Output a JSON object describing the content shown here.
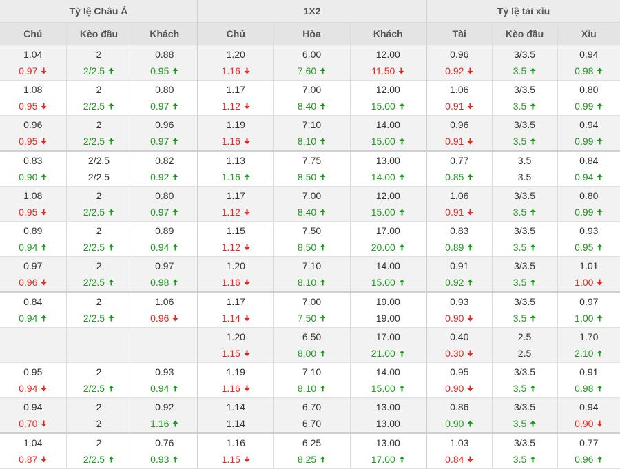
{
  "groups": [
    {
      "label": "Tỷ lệ Châu Á"
    },
    {
      "label": "1X2"
    },
    {
      "label": "Tỷ lệ tài xỉu"
    }
  ],
  "columns": [
    {
      "label": "Chủ"
    },
    {
      "label": "Kèo đầu"
    },
    {
      "label": "Khách"
    },
    {
      "label": "Chủ"
    },
    {
      "label": "Hòa"
    },
    {
      "label": "Khách"
    },
    {
      "label": "Tài"
    },
    {
      "label": "Kèo đầu"
    },
    {
      "label": "Xỉu"
    }
  ],
  "colors": {
    "up": "#1e9b1e",
    "down": "#e8281f",
    "text": "#333333",
    "alt_row_bg": "#f2f2f2",
    "header_bg": "#e4e4e4"
  },
  "icons": {
    "up": "arrow-up-icon",
    "down": "arrow-down-icon"
  },
  "rows": [
    {
      "cells": [
        {
          "opening": "1.04",
          "current": "0.97",
          "trend": "down"
        },
        {
          "opening": "2",
          "current": "2/2.5",
          "trend": "up"
        },
        {
          "opening": "0.88",
          "current": "0.95",
          "trend": "up"
        },
        {
          "opening": "1.20",
          "current": "1.16",
          "trend": "down"
        },
        {
          "opening": "6.00",
          "current": "7.60",
          "trend": "up"
        },
        {
          "opening": "12.00",
          "current": "11.50",
          "trend": "down"
        },
        {
          "opening": "0.96",
          "current": "0.92",
          "trend": "down"
        },
        {
          "opening": "3/3.5",
          "current": "3.5",
          "trend": "up"
        },
        {
          "opening": "0.94",
          "current": "0.98",
          "trend": "up"
        }
      ]
    },
    {
      "cells": [
        {
          "opening": "1.08",
          "current": "0.95",
          "trend": "down"
        },
        {
          "opening": "2",
          "current": "2/2.5",
          "trend": "up"
        },
        {
          "opening": "0.80",
          "current": "0.97",
          "trend": "up"
        },
        {
          "opening": "1.17",
          "current": "1.12",
          "trend": "down"
        },
        {
          "opening": "7.00",
          "current": "8.40",
          "trend": "up"
        },
        {
          "opening": "12.00",
          "current": "15.00",
          "trend": "up"
        },
        {
          "opening": "1.06",
          "current": "0.91",
          "trend": "down"
        },
        {
          "opening": "3/3.5",
          "current": "3.5",
          "trend": "up"
        },
        {
          "opening": "0.80",
          "current": "0.99",
          "trend": "up"
        }
      ]
    },
    {
      "cells": [
        {
          "opening": "0.96",
          "current": "0.95",
          "trend": "down"
        },
        {
          "opening": "2",
          "current": "2/2.5",
          "trend": "up"
        },
        {
          "opening": "0.96",
          "current": "0.97",
          "trend": "up"
        },
        {
          "opening": "1.19",
          "current": "1.16",
          "trend": "down"
        },
        {
          "opening": "7.10",
          "current": "8.10",
          "trend": "up"
        },
        {
          "opening": "14.00",
          "current": "15.00",
          "trend": "up"
        },
        {
          "opening": "0.96",
          "current": "0.91",
          "trend": "down"
        },
        {
          "opening": "3/3.5",
          "current": "3.5",
          "trend": "up"
        },
        {
          "opening": "0.94",
          "current": "0.99",
          "trend": "up"
        }
      ]
    },
    {
      "cells": [
        {
          "opening": "0.83",
          "current": "0.90",
          "trend": "up"
        },
        {
          "opening": "2/2.5",
          "current": "2/2.5",
          "trend": "none"
        },
        {
          "opening": "0.82",
          "current": "0.92",
          "trend": "up"
        },
        {
          "opening": "1.13",
          "current": "1.16",
          "trend": "up"
        },
        {
          "opening": "7.75",
          "current": "8.50",
          "trend": "up"
        },
        {
          "opening": "13.00",
          "current": "14.00",
          "trend": "up"
        },
        {
          "opening": "0.77",
          "current": "0.85",
          "trend": "up"
        },
        {
          "opening": "3.5",
          "current": "3.5",
          "trend": "none"
        },
        {
          "opening": "0.84",
          "current": "0.94",
          "trend": "up"
        }
      ]
    },
    {
      "cells": [
        {
          "opening": "1.08",
          "current": "0.95",
          "trend": "down"
        },
        {
          "opening": "2",
          "current": "2/2.5",
          "trend": "up"
        },
        {
          "opening": "0.80",
          "current": "0.97",
          "trend": "up"
        },
        {
          "opening": "1.17",
          "current": "1.12",
          "trend": "down"
        },
        {
          "opening": "7.00",
          "current": "8.40",
          "trend": "up"
        },
        {
          "opening": "12.00",
          "current": "15.00",
          "trend": "up"
        },
        {
          "opening": "1.06",
          "current": "0.91",
          "trend": "down"
        },
        {
          "opening": "3/3.5",
          "current": "3.5",
          "trend": "up"
        },
        {
          "opening": "0.80",
          "current": "0.99",
          "trend": "up"
        }
      ]
    },
    {
      "cells": [
        {
          "opening": "0.89",
          "current": "0.94",
          "trend": "up"
        },
        {
          "opening": "2",
          "current": "2/2.5",
          "trend": "up"
        },
        {
          "opening": "0.89",
          "current": "0.94",
          "trend": "up"
        },
        {
          "opening": "1.15",
          "current": "1.12",
          "trend": "down"
        },
        {
          "opening": "7.50",
          "current": "8.50",
          "trend": "up"
        },
        {
          "opening": "17.00",
          "current": "20.00",
          "trend": "up"
        },
        {
          "opening": "0.83",
          "current": "0.89",
          "trend": "up"
        },
        {
          "opening": "3/3.5",
          "current": "3.5",
          "trend": "up"
        },
        {
          "opening": "0.93",
          "current": "0.95",
          "trend": "up"
        }
      ]
    },
    {
      "cells": [
        {
          "opening": "0.97",
          "current": "0.96",
          "trend": "down"
        },
        {
          "opening": "2",
          "current": "2/2.5",
          "trend": "up"
        },
        {
          "opening": "0.97",
          "current": "0.98",
          "trend": "up"
        },
        {
          "opening": "1.20",
          "current": "1.16",
          "trend": "down"
        },
        {
          "opening": "7.10",
          "current": "8.10",
          "trend": "up"
        },
        {
          "opening": "14.00",
          "current": "15.00",
          "trend": "up"
        },
        {
          "opening": "0.91",
          "current": "0.92",
          "trend": "up"
        },
        {
          "opening": "3/3.5",
          "current": "3.5",
          "trend": "up"
        },
        {
          "opening": "1.01",
          "current": "1.00",
          "trend": "down"
        }
      ]
    },
    {
      "cells": [
        {
          "opening": "0.84",
          "current": "0.94",
          "trend": "up"
        },
        {
          "opening": "2",
          "current": "2/2.5",
          "trend": "up"
        },
        {
          "opening": "1.06",
          "current": "0.96",
          "trend": "down"
        },
        {
          "opening": "1.17",
          "current": "1.14",
          "trend": "down"
        },
        {
          "opening": "7.00",
          "current": "7.50",
          "trend": "up"
        },
        {
          "opening": "19.00",
          "current": "19.00",
          "trend": "none"
        },
        {
          "opening": "0.93",
          "current": "0.90",
          "trend": "down"
        },
        {
          "opening": "3/3.5",
          "current": "3.5",
          "trend": "up"
        },
        {
          "opening": "0.97",
          "current": "1.00",
          "trend": "up"
        }
      ]
    },
    {
      "cells": [
        {
          "opening": "",
          "current": "",
          "trend": "none"
        },
        {
          "opening": "",
          "current": "",
          "trend": "none"
        },
        {
          "opening": "",
          "current": "",
          "trend": "none"
        },
        {
          "opening": "1.20",
          "current": "1.15",
          "trend": "down"
        },
        {
          "opening": "6.50",
          "current": "8.00",
          "trend": "up"
        },
        {
          "opening": "17.00",
          "current": "21.00",
          "trend": "up"
        },
        {
          "opening": "0.40",
          "current": "0.30",
          "trend": "down"
        },
        {
          "opening": "2.5",
          "current": "2.5",
          "trend": "none"
        },
        {
          "opening": "1.70",
          "current": "2.10",
          "trend": "up"
        }
      ]
    },
    {
      "cells": [
        {
          "opening": "0.95",
          "current": "0.94",
          "trend": "down"
        },
        {
          "opening": "2",
          "current": "2/2.5",
          "trend": "up"
        },
        {
          "opening": "0.93",
          "current": "0.94",
          "trend": "up"
        },
        {
          "opening": "1.19",
          "current": "1.16",
          "trend": "down"
        },
        {
          "opening": "7.10",
          "current": "8.10",
          "trend": "up"
        },
        {
          "opening": "14.00",
          "current": "15.00",
          "trend": "up"
        },
        {
          "opening": "0.95",
          "current": "0.90",
          "trend": "down"
        },
        {
          "opening": "3/3.5",
          "current": "3.5",
          "trend": "up"
        },
        {
          "opening": "0.91",
          "current": "0.98",
          "trend": "up"
        }
      ]
    },
    {
      "cells": [
        {
          "opening": "0.94",
          "current": "0.70",
          "trend": "down"
        },
        {
          "opening": "2",
          "current": "2",
          "trend": "none"
        },
        {
          "opening": "0.92",
          "current": "1.16",
          "trend": "up"
        },
        {
          "opening": "1.14",
          "current": "1.14",
          "trend": "none"
        },
        {
          "opening": "6.70",
          "current": "6.70",
          "trend": "none"
        },
        {
          "opening": "13.00",
          "current": "13.00",
          "trend": "none"
        },
        {
          "opening": "0.86",
          "current": "0.90",
          "trend": "up"
        },
        {
          "opening": "3/3.5",
          "current": "3.5",
          "trend": "up"
        },
        {
          "opening": "0.94",
          "current": "0.90",
          "trend": "down"
        }
      ]
    },
    {
      "cells": [
        {
          "opening": "1.04",
          "current": "0.87",
          "trend": "down"
        },
        {
          "opening": "2",
          "current": "2/2.5",
          "trend": "up"
        },
        {
          "opening": "0.76",
          "current": "0.93",
          "trend": "up"
        },
        {
          "opening": "1.16",
          "current": "1.15",
          "trend": "down"
        },
        {
          "opening": "6.25",
          "current": "8.25",
          "trend": "up"
        },
        {
          "opening": "13.00",
          "current": "17.00",
          "trend": "up"
        },
        {
          "opening": "1.03",
          "current": "0.84",
          "trend": "down"
        },
        {
          "opening": "3/3.5",
          "current": "3.5",
          "trend": "up"
        },
        {
          "opening": "0.77",
          "current": "0.96",
          "trend": "up"
        }
      ]
    }
  ]
}
